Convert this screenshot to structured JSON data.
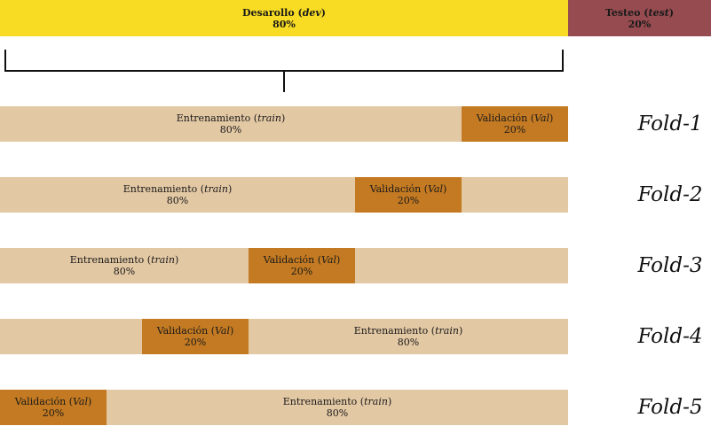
{
  "split": {
    "dev": {
      "label": "Desarollo",
      "abbr": "dev",
      "pct": "80%"
    },
    "test": {
      "label": "Testeo",
      "abbr": "test",
      "pct": "20%"
    }
  },
  "train": {
    "label": "Entrenamiento",
    "abbr": "train",
    "pct": "80%"
  },
  "val": {
    "label": "Validación",
    "abbr": "Val",
    "pct": "20%"
  },
  "folds": [
    "Fold-1",
    "Fold-2",
    "Fold-3",
    "Fold-4",
    "Fold-5"
  ],
  "colors": {
    "dev": "#f8dc23",
    "test": "#954b4f",
    "train": "#e3c8a4",
    "val": "#c47a22"
  }
}
